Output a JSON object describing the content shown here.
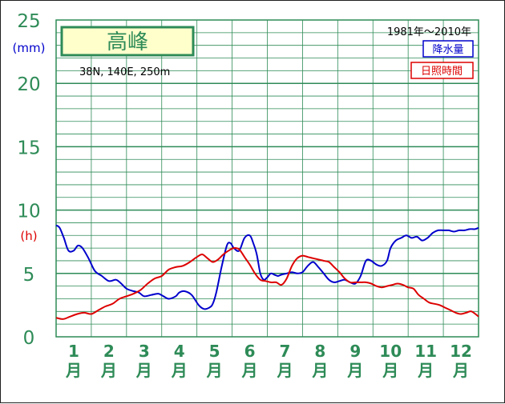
{
  "chart_data": {
    "type": "line",
    "title": "高峰",
    "location": "38N, 140E, 250m",
    "period": "1981年〜2010年",
    "y_units": {
      "precipitation": "(mm)",
      "sunshine": "(h)"
    },
    "ylim": [
      0,
      25
    ],
    "yticks": [
      "0",
      "5",
      "10",
      "15",
      "20",
      "25"
    ],
    "categories": [
      "1",
      "2",
      "3",
      "4",
      "5",
      "6",
      "7",
      "8",
      "9",
      "10",
      "11",
      "12"
    ],
    "month_suffix": "月",
    "grid": true,
    "legend_position": "top-right",
    "series": [
      {
        "name": "降水量",
        "color": "#0000cc",
        "x": [
          0.5,
          0.6,
          0.72,
          0.85,
          1.0,
          1.12,
          1.25,
          1.42,
          1.6,
          1.8,
          2.0,
          2.2,
          2.35,
          2.5,
          2.7,
          2.85,
          3.0,
          3.2,
          3.4,
          3.55,
          3.7,
          3.9,
          4.0,
          4.15,
          4.35,
          4.55,
          4.7,
          4.85,
          4.95,
          5.05,
          5.2,
          5.35,
          5.45,
          5.55,
          5.7,
          5.85,
          6.0,
          6.1,
          6.2,
          6.3,
          6.4,
          6.5,
          6.6,
          6.7,
          6.8,
          6.9,
          7.05,
          7.2,
          7.35,
          7.5,
          7.65,
          7.8,
          7.95,
          8.1,
          8.25,
          8.4,
          8.55,
          8.7,
          8.85,
          9.0,
          9.15,
          9.3,
          9.45,
          9.6,
          9.75,
          9.9,
          10.0,
          10.15,
          10.3,
          10.45,
          10.6,
          10.75,
          10.9,
          11.05,
          11.2,
          11.35,
          11.5,
          11.65,
          11.8,
          11.95,
          12.1,
          12.25,
          12.4,
          12.5
        ],
        "values": [
          8.8,
          8.6,
          7.8,
          6.8,
          6.8,
          7.2,
          7.0,
          6.2,
          5.2,
          4.8,
          4.4,
          4.5,
          4.2,
          3.8,
          3.6,
          3.5,
          3.2,
          3.3,
          3.4,
          3.2,
          3.0,
          3.2,
          3.5,
          3.6,
          3.3,
          2.5,
          2.2,
          2.3,
          2.6,
          3.5,
          5.5,
          7.2,
          7.4,
          7.0,
          6.8,
          7.8,
          8.0,
          7.4,
          6.5,
          5.0,
          4.5,
          4.7,
          5.0,
          4.9,
          4.8,
          4.9,
          5.0,
          5.1,
          5.0,
          5.1,
          5.6,
          5.9,
          5.5,
          5.0,
          4.5,
          4.3,
          4.4,
          4.5,
          4.3,
          4.2,
          4.8,
          6.0,
          6.0,
          5.7,
          5.6,
          6.0,
          7.0,
          7.6,
          7.8,
          8.0,
          7.8,
          7.9,
          7.6,
          7.8,
          8.2,
          8.4,
          8.4,
          8.4,
          8.3,
          8.4,
          8.4,
          8.5,
          8.5,
          8.6
        ]
      },
      {
        "name": "日照時間",
        "color": "#dd0000",
        "x": [
          0.5,
          0.7,
          0.9,
          1.1,
          1.3,
          1.5,
          1.7,
          1.9,
          2.1,
          2.3,
          2.5,
          2.7,
          2.9,
          3.1,
          3.3,
          3.5,
          3.7,
          3.9,
          4.1,
          4.3,
          4.5,
          4.65,
          4.8,
          4.95,
          5.1,
          5.25,
          5.4,
          5.55,
          5.7,
          5.85,
          6.0,
          6.15,
          6.3,
          6.45,
          6.6,
          6.75,
          6.9,
          7.05,
          7.2,
          7.35,
          7.5,
          7.65,
          7.8,
          7.95,
          8.1,
          8.25,
          8.4,
          8.55,
          8.7,
          8.85,
          9.0,
          9.15,
          9.3,
          9.45,
          9.6,
          9.75,
          9.9,
          10.05,
          10.2,
          10.35,
          10.5,
          10.65,
          10.8,
          10.95,
          11.1,
          11.25,
          11.4,
          11.55,
          11.7,
          11.85,
          12.0,
          12.15,
          12.3,
          12.5
        ],
        "values": [
          1.5,
          1.4,
          1.6,
          1.8,
          1.9,
          1.8,
          2.1,
          2.4,
          2.6,
          3.0,
          3.2,
          3.4,
          3.7,
          4.2,
          4.6,
          4.8,
          5.3,
          5.5,
          5.6,
          5.9,
          6.3,
          6.5,
          6.2,
          5.9,
          6.1,
          6.5,
          6.8,
          7.0,
          6.9,
          6.3,
          5.7,
          5.0,
          4.5,
          4.4,
          4.3,
          4.3,
          4.1,
          4.6,
          5.6,
          6.2,
          6.4,
          6.3,
          6.2,
          6.1,
          6.0,
          5.9,
          5.5,
          5.1,
          4.6,
          4.3,
          4.3,
          4.3,
          4.3,
          4.2,
          4.0,
          3.9,
          4.0,
          4.1,
          4.2,
          4.1,
          3.9,
          3.8,
          3.3,
          3.0,
          2.7,
          2.6,
          2.5,
          2.3,
          2.1,
          1.9,
          1.8,
          1.9,
          2.0,
          1.6
        ]
      }
    ]
  }
}
